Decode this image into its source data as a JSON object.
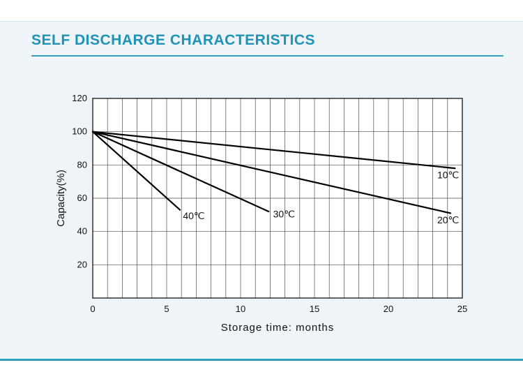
{
  "header": {
    "title": "SELF DISCHARGE CHARACTERISTICS"
  },
  "chart_data": {
    "type": "line",
    "title": "SELF DISCHARGE CHARACTERISTICS",
    "xlabel": "Storage time: months",
    "ylabel": "Capacity(%)",
    "xlim": [
      0,
      25
    ],
    "ylim": [
      0,
      120
    ],
    "x_ticks": [
      0,
      5,
      10,
      15,
      20,
      25
    ],
    "y_ticks": [
      20,
      40,
      60,
      80,
      100,
      120
    ],
    "grid": {
      "x_step": 1,
      "y_step": 20,
      "visible": true
    },
    "legend_position": "none",
    "line_color": "#000000",
    "series": [
      {
        "name": "10℃",
        "points": [
          [
            0,
            100
          ],
          [
            24.5,
            78
          ]
        ],
        "label_at": [
          23.3,
          72
        ]
      },
      {
        "name": "20℃",
        "points": [
          [
            0,
            100
          ],
          [
            24.2,
            51
          ]
        ],
        "label_at": [
          23.3,
          45
        ]
      },
      {
        "name": "30℃",
        "points": [
          [
            0,
            100
          ],
          [
            11.9,
            52
          ]
        ],
        "label_at": [
          12.2,
          48.5
        ]
      },
      {
        "name": "40℃",
        "points": [
          [
            0,
            100
          ],
          [
            5.9,
            53
          ]
        ],
        "label_at": [
          6.1,
          47.5
        ]
      }
    ]
  }
}
